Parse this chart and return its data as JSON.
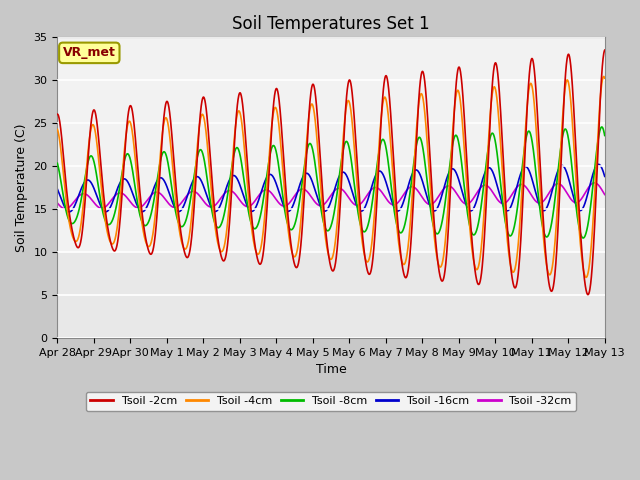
{
  "title": "Soil Temperatures Set 1",
  "xlabel": "Time",
  "ylabel": "Soil Temperature (C)",
  "ylim": [
    0,
    35
  ],
  "yticks": [
    0,
    5,
    10,
    15,
    20,
    25,
    30,
    35
  ],
  "x_tick_labels": [
    "Apr 28",
    "Apr 29",
    "Apr 30",
    "May 1",
    "May 2",
    "May 3",
    "May 4",
    "May 5",
    "May 6",
    "May 7",
    "May 8",
    "May 9",
    "May 10",
    "May 11",
    "May 12",
    "May 13"
  ],
  "legend_labels": [
    "Tsoil -2cm",
    "Tsoil -4cm",
    "Tsoil -8cm",
    "Tsoil -16cm",
    "Tsoil -32cm"
  ],
  "line_colors": [
    "#cc0000",
    "#ff8800",
    "#00bb00",
    "#0000cc",
    "#cc00cc"
  ],
  "annotation_text": "VR_met",
  "title_fontsize": 12,
  "axis_label_fontsize": 9,
  "tick_fontsize": 8,
  "plot_facecolor": "#ffffff",
  "fig_facecolor": "#c8c8c8",
  "grid_color": "#cccccc"
}
